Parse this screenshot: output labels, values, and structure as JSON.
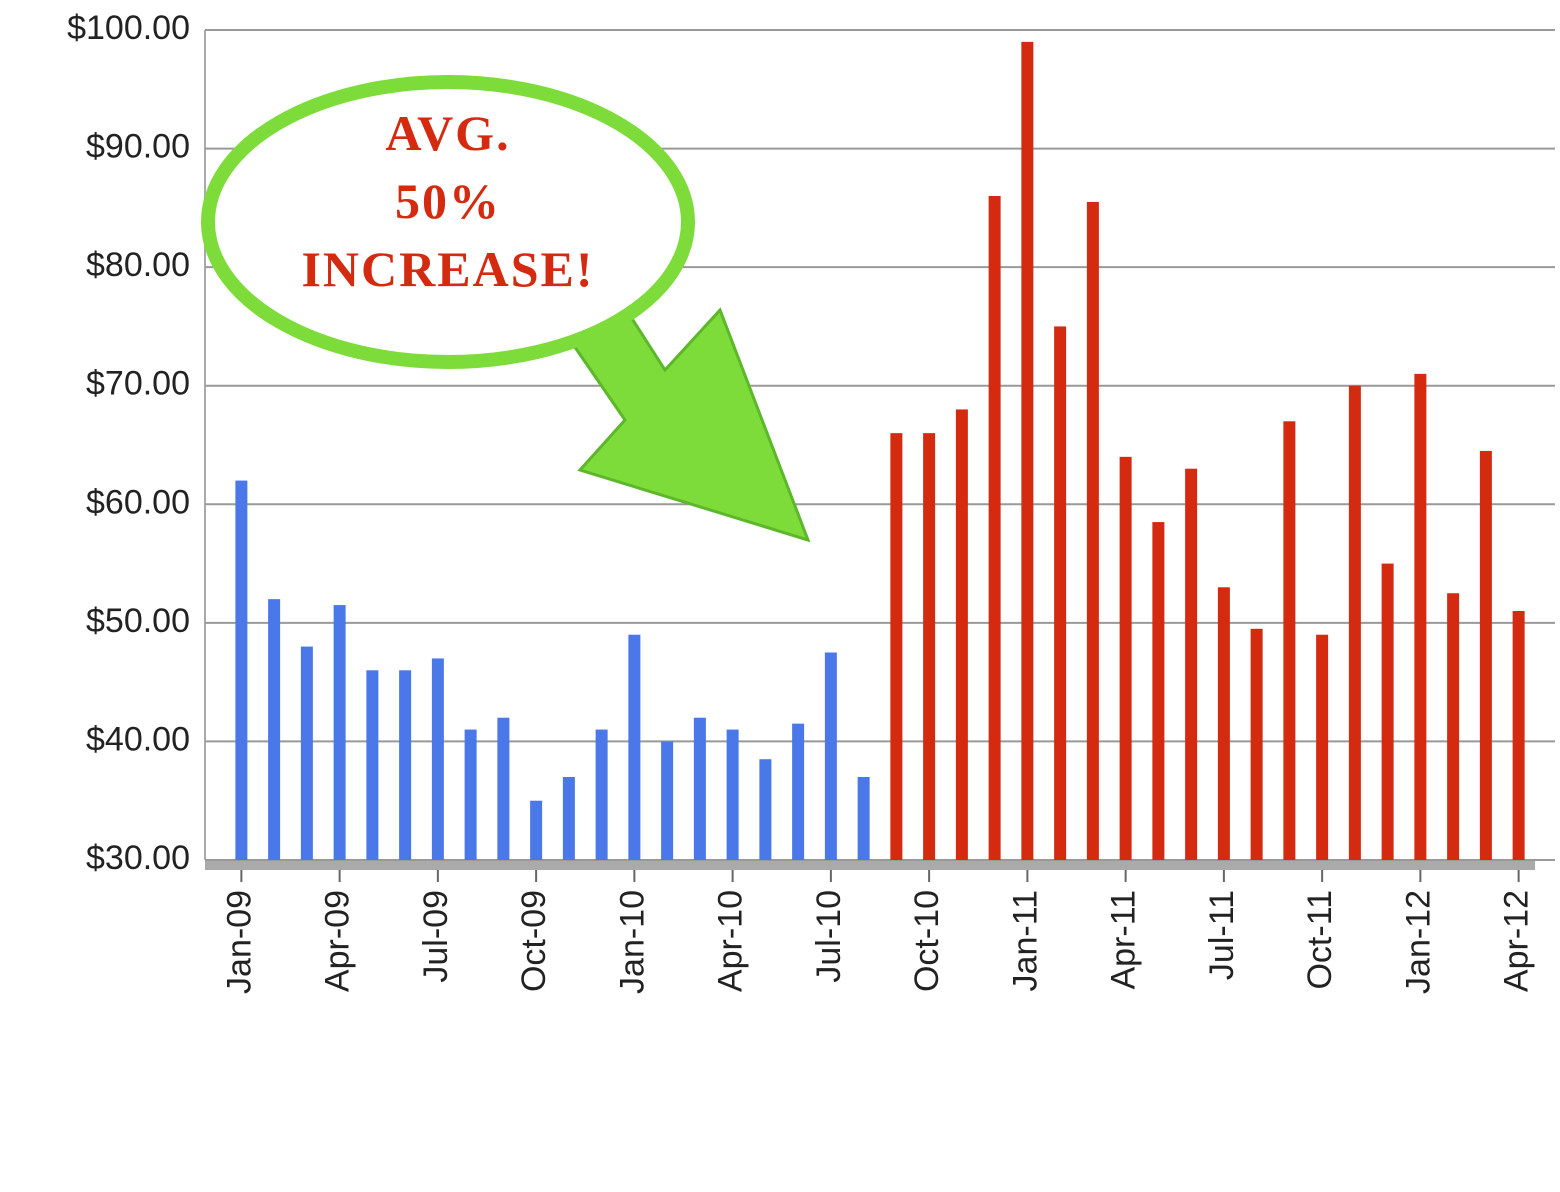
{
  "chart_data": {
    "type": "bar",
    "categories": [
      "Jan-09",
      null,
      null,
      "Apr-09",
      null,
      null,
      "Jul-09",
      null,
      null,
      "Oct-09",
      null,
      null,
      "Jan-10",
      null,
      null,
      "Apr-10",
      null,
      null,
      "Jul-10",
      null,
      null,
      "Oct-10",
      null,
      null,
      "Jan-11",
      null,
      null,
      "Apr-11",
      null,
      null,
      "Jul-11",
      null,
      null,
      "Oct-11",
      null,
      null,
      "Jan-12",
      null,
      null,
      "Apr-12"
    ],
    "series": [
      {
        "color": "#4a78e8",
        "values": [
          62,
          52,
          48,
          51.5,
          46,
          46,
          47,
          41,
          42,
          35,
          37,
          41,
          49,
          40,
          42,
          41,
          38.5,
          41.5,
          47.5,
          37,
          null,
          null,
          null,
          null,
          null,
          null,
          null,
          null,
          null,
          null,
          null,
          null,
          null,
          null,
          null,
          null,
          null,
          null,
          null,
          null
        ]
      },
      {
        "color": "#d42a10",
        "values": [
          null,
          null,
          null,
          null,
          null,
          null,
          null,
          null,
          null,
          null,
          null,
          null,
          null,
          null,
          null,
          null,
          null,
          null,
          null,
          null,
          66,
          66,
          68,
          86,
          99,
          75,
          85.5,
          64,
          58.5,
          63,
          53,
          49.5,
          67,
          49,
          70,
          55,
          71,
          52.5,
          64.5,
          51
        ]
      }
    ],
    "ylim": [
      30,
      100
    ],
    "yticks": [
      {
        "value": 30,
        "label": "$30.00"
      },
      {
        "value": 40,
        "label": "$40.00"
      },
      {
        "value": 50,
        "label": "$50.00"
      },
      {
        "value": 60,
        "label": "$60.00"
      },
      {
        "value": 70,
        "label": "$70.00"
      },
      {
        "value": 80,
        "label": "$80.00"
      },
      {
        "value": 90,
        "label": "$90.00"
      },
      {
        "value": 100,
        "label": "$100.00"
      }
    ],
    "grid": true,
    "annotation": [
      "AVG.",
      "50%",
      "INCREASE!"
    ]
  }
}
